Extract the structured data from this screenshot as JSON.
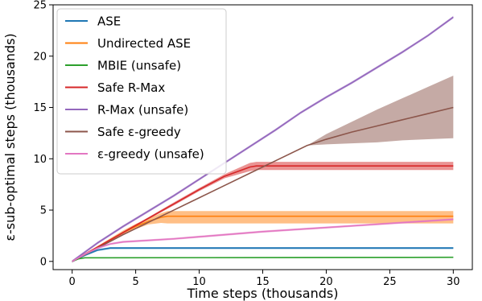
{
  "chart_data": {
    "type": "line",
    "xlabel": "Time steps (thousands)",
    "ylabel": "ε-sub-optimal steps (thousands)",
    "xlim": [
      -1.5,
      31.5
    ],
    "ylim": [
      -0.8,
      25
    ],
    "xticks": [
      0,
      5,
      10,
      15,
      20,
      25,
      30
    ],
    "yticks": [
      0,
      5,
      10,
      15,
      20,
      25
    ],
    "grid": false,
    "legend_position": "top-left",
    "series": [
      {
        "name": "ASE",
        "color": "#1f77b4",
        "x": [
          0,
          1,
          2,
          3,
          30
        ],
        "y": [
          0,
          0.6,
          1.1,
          1.3,
          1.3
        ],
        "band": 0.1
      },
      {
        "name": "Undirected ASE",
        "color": "#ff7f0e",
        "x": [
          0,
          1,
          2,
          3,
          4,
          5,
          6,
          7,
          7.5,
          30
        ],
        "y": [
          0,
          0.7,
          1.4,
          2.1,
          2.8,
          3.4,
          3.9,
          4.3,
          4.4,
          4.4
        ],
        "band_x": [
          0,
          1,
          2,
          3,
          4,
          5,
          6,
          7,
          7.5,
          30
        ],
        "band_lower": [
          0,
          0.65,
          1.3,
          1.95,
          2.6,
          3.15,
          3.6,
          3.75,
          3.7,
          3.7
        ],
        "band_upper": [
          0,
          0.75,
          1.5,
          2.25,
          3.0,
          3.65,
          4.2,
          4.7,
          4.9,
          4.9
        ]
      },
      {
        "name": "MBIE (unsafe)",
        "color": "#2ca02c",
        "x": [
          0,
          0.5,
          1,
          30
        ],
        "y": [
          0,
          0.25,
          0.35,
          0.4
        ],
        "band": 0.05
      },
      {
        "name": "Safe R-Max",
        "color": "#d62728",
        "x": [
          0,
          2,
          4,
          6,
          8,
          10,
          12,
          14,
          14.5,
          30
        ],
        "y": [
          0,
          1.4,
          2.8,
          4.2,
          5.6,
          7.0,
          8.3,
          9.2,
          9.3,
          9.3
        ],
        "band_x": [
          0,
          2,
          4,
          6,
          8,
          10,
          12,
          14,
          14.5,
          30
        ],
        "band_lower": [
          0,
          1.35,
          2.7,
          4.1,
          5.45,
          6.85,
          8.1,
          8.8,
          8.9,
          8.9
        ],
        "band_upper": [
          0,
          1.45,
          2.9,
          4.3,
          5.75,
          7.15,
          8.5,
          9.6,
          9.7,
          9.7
        ]
      },
      {
        "name": "R-Max (unsafe)",
        "color": "#9467bd",
        "x": [
          0,
          2,
          4,
          6,
          8,
          10,
          12,
          14,
          16,
          18,
          20,
          22,
          24,
          26,
          28,
          30
        ],
        "y": [
          0,
          1.8,
          3.4,
          4.9,
          6.4,
          8.0,
          9.6,
          11.2,
          12.8,
          14.5,
          16.0,
          17.4,
          18.9,
          20.4,
          22.0,
          23.8
        ],
        "band": 0.12
      },
      {
        "name": "Safe ε-greedy",
        "color": "#8c564b",
        "x": [
          0,
          2,
          4,
          6,
          8,
          10,
          12,
          14,
          16,
          18.5,
          20,
          22,
          24,
          26,
          28,
          30
        ],
        "y": [
          0,
          1.3,
          2.6,
          3.8,
          5.0,
          6.2,
          7.4,
          8.6,
          9.8,
          11.3,
          11.9,
          12.6,
          13.2,
          13.8,
          14.4,
          15.0
        ],
        "band_x": [
          18.5,
          20,
          22,
          24,
          26,
          28,
          30
        ],
        "band_lower": [
          11.3,
          11.4,
          11.5,
          11.6,
          11.8,
          11.9,
          12.0
        ],
        "band_upper": [
          11.3,
          12.4,
          13.6,
          14.8,
          15.9,
          17.0,
          18.1
        ]
      },
      {
        "name": "ε-greedy (unsafe)",
        "color": "#e377c2",
        "x": [
          0,
          1,
          2,
          3,
          4,
          6,
          8,
          10,
          15,
          20,
          25,
          30
        ],
        "y": [
          0,
          0.7,
          1.3,
          1.7,
          1.9,
          2.05,
          2.2,
          2.4,
          2.9,
          3.3,
          3.7,
          4.1
        ],
        "band": 0.1
      }
    ]
  }
}
